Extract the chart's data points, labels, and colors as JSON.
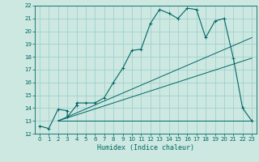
{
  "title": "",
  "xlabel": "Humidex (Indice chaleur)",
  "xlim": [
    -0.5,
    23.5
  ],
  "ylim": [
    12,
    22
  ],
  "xticks": [
    0,
    1,
    2,
    3,
    4,
    5,
    6,
    7,
    8,
    9,
    10,
    11,
    12,
    13,
    14,
    15,
    16,
    17,
    18,
    19,
    20,
    21,
    22,
    23
  ],
  "yticks": [
    12,
    13,
    14,
    15,
    16,
    17,
    18,
    19,
    20,
    21,
    22
  ],
  "bg_color": "#cce8e0",
  "line_color": "#006666",
  "grid_color": "#99cccc",
  "series1_x": [
    0,
    1,
    2,
    3,
    3,
    4,
    4,
    5,
    6,
    7,
    8,
    9,
    10,
    11,
    12,
    13,
    14,
    15,
    16,
    17,
    18,
    19,
    20,
    21,
    22,
    23
  ],
  "series1_y": [
    12.6,
    12.4,
    13.9,
    13.8,
    13.3,
    14.2,
    14.4,
    14.4,
    14.4,
    14.8,
    16.0,
    17.1,
    18.5,
    18.6,
    20.6,
    21.7,
    21.4,
    21.0,
    21.8,
    21.7,
    19.5,
    20.8,
    21.0,
    17.9,
    14.0,
    13.0
  ],
  "series2_x": [
    2,
    23
  ],
  "series2_y": [
    13.0,
    13.0
  ],
  "series3_x": [
    2,
    23
  ],
  "series3_y": [
    13.0,
    19.5
  ],
  "series4_x": [
    2,
    23
  ],
  "series4_y": [
    13.0,
    17.9
  ]
}
